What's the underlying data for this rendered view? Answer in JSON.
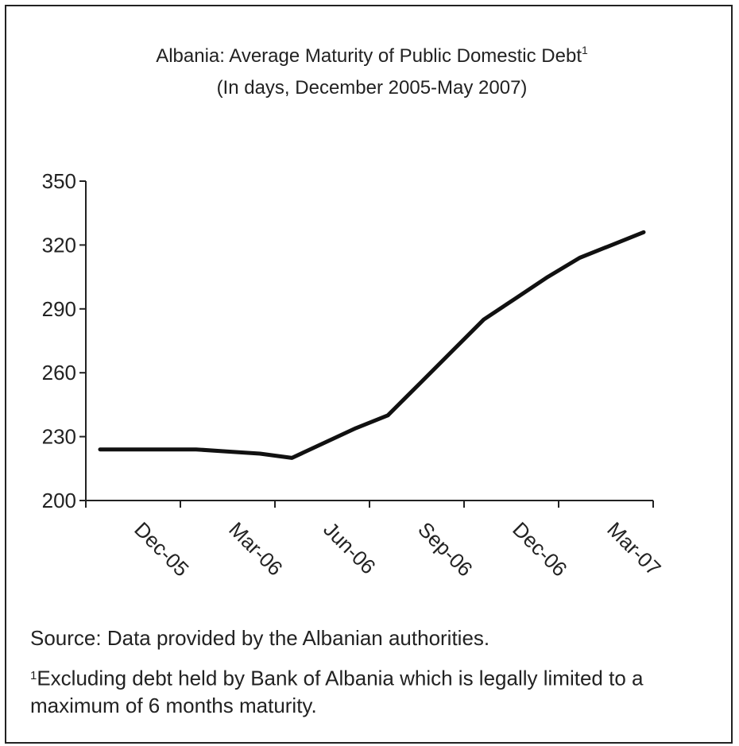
{
  "chart_data": {
    "type": "line",
    "title": "Albania: Average Maturity of Public Domestic Debt",
    "title_footnote_mark": "1",
    "subtitle": "(In days, December 2005-May 2007)",
    "xlabel": "",
    "ylabel": "",
    "ylim": [
      200,
      350
    ],
    "yticks": [
      200,
      230,
      260,
      290,
      320,
      350
    ],
    "categories": [
      "Dec-05",
      "Mar-06",
      "Jun-06",
      "Sep-06",
      "Dec-06",
      "Mar-07"
    ],
    "x": [
      "Dec-05",
      "Jan-06",
      "Feb-06",
      "Mar-06",
      "Apr-06",
      "May-06",
      "Jun-06",
      "Jul-06",
      "Aug-06",
      "Sep-06",
      "Oct-06",
      "Nov-06",
      "Dec-06",
      "Jan-07",
      "Feb-07",
      "Mar-07",
      "Apr-07",
      "May-07"
    ],
    "series": [
      {
        "values": [
          224,
          224,
          224,
          224,
          223,
          222,
          220,
          227,
          234,
          240,
          255,
          270,
          285,
          295,
          305,
          314,
          320,
          326
        ]
      }
    ],
    "line_color": "#111111",
    "grid": false,
    "legend": "none"
  },
  "source_text": "Source: Data provided by the Albanian authorities.",
  "footnote_mark": "1",
  "footnote_line1": "Excluding debt held by Bank of Albania which is legally limited to a",
  "footnote_line2": "maximum of 6 months maturity."
}
